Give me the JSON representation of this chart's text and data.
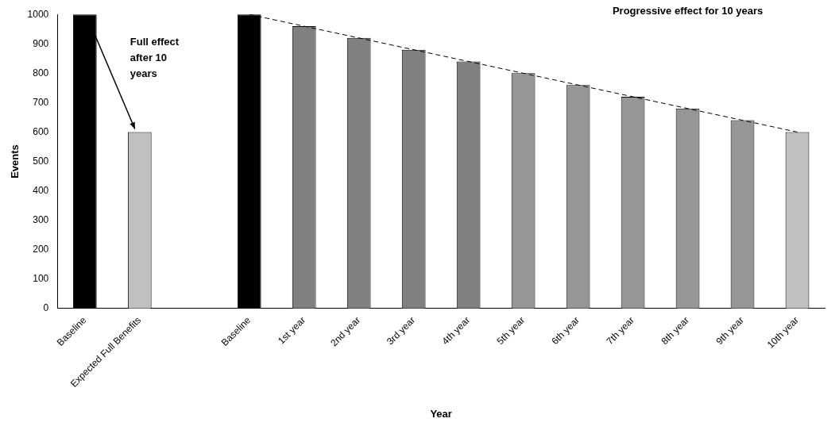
{
  "chart_data": {
    "type": "bar",
    "xlabel": "Year",
    "ylabel": "Events",
    "categories": [
      "Baseline",
      "Expected Full Benefits",
      null,
      "Baseline",
      "1st year",
      "2nd year",
      "3rd year",
      "4th year",
      "5th year",
      "6th year",
      "7th year",
      "8th year",
      "9th year",
      "10th year"
    ],
    "series": [
      {
        "values": [
          1000,
          600,
          null,
          1000,
          960,
          920,
          880,
          840,
          800,
          760,
          720,
          680,
          640,
          600
        ],
        "colors": [
          "#000000",
          "#c0c0c0",
          "#c0c0c0",
          "#000000",
          "#808080",
          "#808080",
          "#808080",
          "#808080",
          "#969696",
          "#969696",
          "#969696",
          "#969696",
          "#969696",
          "#c0c0c0"
        ]
      },
      {
        "type": "line",
        "color": "#000000",
        "line_style": "dashed",
        "marker": "none",
        "values": [
          null,
          null,
          null,
          1000,
          null,
          null,
          null,
          null,
          null,
          null,
          null,
          null,
          null,
          600
        ]
      }
    ],
    "ylim": [
      0,
      1000
    ],
    "yticks": [
      0,
      100,
      200,
      300,
      400,
      500,
      600,
      700,
      800,
      900,
      1000
    ],
    "grid": false,
    "legend": false,
    "annotations": [
      "Full effect after 10 years",
      "Progressive effect for 10 years"
    ]
  }
}
